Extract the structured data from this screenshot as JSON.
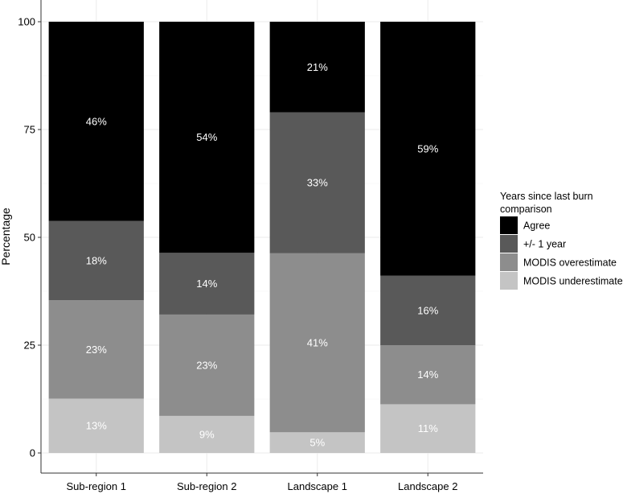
{
  "chart_data": {
    "type": "bar",
    "stacked": true,
    "categories": [
      "Sub-region 1",
      "Sub-region 2",
      "Landscape 1",
      "Landscape 2"
    ],
    "series": [
      {
        "name": "MODIS underestimate",
        "color": "#c4c4c4",
        "values": [
          12.6,
          8.6,
          4.8,
          11.3
        ],
        "labels": [
          "13%",
          "9%",
          "5%",
          "11%"
        ]
      },
      {
        "name": "MODIS overestimate",
        "color": "#8d8d8d",
        "values": [
          22.8,
          23.5,
          41.5,
          13.7
        ],
        "labels": [
          "23%",
          "23%",
          "41%",
          "14%"
        ]
      },
      {
        "name": "+/- 1 year",
        "color": "#595959",
        "values": [
          18.4,
          14.3,
          32.7,
          16.1
        ],
        "labels": [
          "18%",
          "14%",
          "33%",
          "16%"
        ]
      },
      {
        "name": "Agree",
        "color": "#000000",
        "values": [
          46.2,
          53.6,
          21.0,
          58.9
        ],
        "labels": [
          "46%",
          "54%",
          "21%",
          "59%"
        ]
      }
    ],
    "ylabel": "Percentage",
    "xlabel": "",
    "ylim": [
      0,
      100
    ],
    "yticks": [
      0,
      25,
      50,
      75,
      100
    ],
    "grid": true,
    "legend": {
      "title": "Years since last burn comparison",
      "title_lines": [
        "Years since last burn",
        "comparison"
      ],
      "position": "right",
      "entries": [
        "Agree",
        "+/- 1 year",
        "MODIS overestimate",
        "MODIS underestimate"
      ]
    }
  }
}
